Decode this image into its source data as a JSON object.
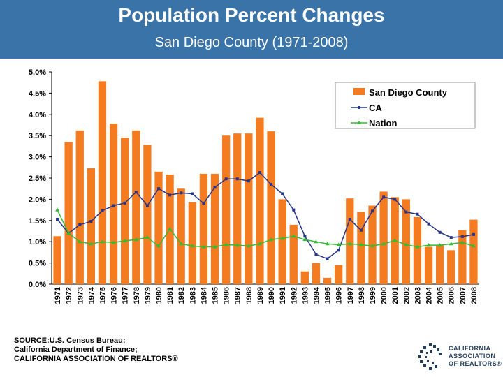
{
  "header": {
    "title": "Population Percent Changes",
    "subtitle": "San Diego County (1971-2008)",
    "background": "#3a73a8"
  },
  "chart_data": {
    "type": "bar",
    "categories": [
      "1971",
      "1972",
      "1973",
      "1974",
      "1975",
      "1976",
      "1977",
      "1978",
      "1979",
      "1980",
      "1981",
      "1982",
      "1983",
      "1984",
      "1985",
      "1986",
      "1987",
      "1988",
      "1989",
      "1990",
      "1991",
      "1992",
      "1993",
      "1994",
      "1995",
      "1996",
      "1997",
      "1998",
      "1999",
      "2000",
      "2001",
      "2002",
      "2003",
      "2004",
      "2005",
      "2006",
      "2007",
      "2008"
    ],
    "series": [
      {
        "name": "San Diego County",
        "kind": "bar",
        "color": "#f47b20",
        "values": [
          1.13,
          3.35,
          3.62,
          2.73,
          4.78,
          3.78,
          3.45,
          3.62,
          3.28,
          2.65,
          2.58,
          2.25,
          1.93,
          2.6,
          2.6,
          3.5,
          3.55,
          3.55,
          3.92,
          3.6,
          2.0,
          1.4,
          0.3,
          0.5,
          0.15,
          0.45,
          2.02,
          1.7,
          1.85,
          2.18,
          2.05,
          2.0,
          1.58,
          0.88,
          0.92,
          0.8,
          1.27,
          1.52
        ]
      },
      {
        "name": "CA",
        "kind": "line",
        "color": "#26358b",
        "values": [
          1.53,
          1.2,
          1.4,
          1.48,
          1.73,
          1.85,
          1.91,
          2.17,
          1.85,
          2.25,
          2.1,
          2.15,
          2.13,
          1.9,
          2.28,
          2.48,
          2.48,
          2.43,
          2.63,
          2.35,
          2.13,
          1.75,
          1.13,
          0.7,
          0.6,
          0.8,
          1.53,
          1.27,
          1.72,
          2.05,
          2.0,
          1.7,
          1.65,
          1.42,
          1.22,
          1.1,
          1.12,
          1.17
        ]
      },
      {
        "name": "Nation",
        "kind": "line",
        "color": "#33bb33",
        "values": [
          1.75,
          1.2,
          1.0,
          0.95,
          1.0,
          0.98,
          1.02,
          1.05,
          1.1,
          0.9,
          1.3,
          0.95,
          0.9,
          0.88,
          0.88,
          0.93,
          0.92,
          0.9,
          0.95,
          1.05,
          1.08,
          1.13,
          1.05,
          1.0,
          0.95,
          0.93,
          0.95,
          0.93,
          0.9,
          0.95,
          1.03,
          0.93,
          0.88,
          0.92,
          0.92,
          0.95,
          0.98,
          0.9
        ]
      }
    ],
    "yticks": [
      "0.0%",
      "0.5%",
      "1.0%",
      "1.5%",
      "2.0%",
      "2.5%",
      "3.0%",
      "3.5%",
      "4.0%",
      "4.5%",
      "5.0%"
    ],
    "ylim": [
      0,
      5
    ],
    "grid": false,
    "legend": "top-right"
  },
  "source": {
    "line1": "SOURCE:U.S. Census Bureau;",
    "line2": "California Department of Finance;",
    "line3": "CALIFORNIA ASSOCIATION OF REALTORS®"
  },
  "logo": {
    "line1": "CALIFORNIA",
    "line2": "ASSOCIATION",
    "line3": "OF REALTORS®"
  }
}
